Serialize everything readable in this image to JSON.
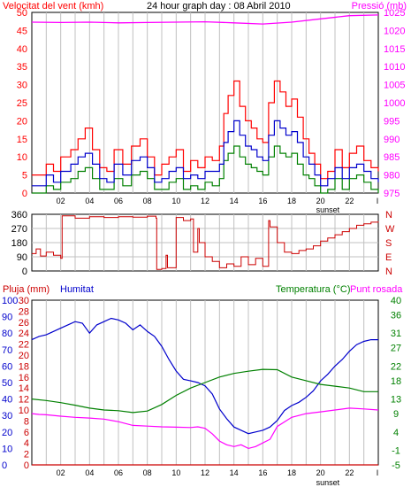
{
  "header": {
    "wind_label": "Velocitat del vent (kmh)",
    "title": "24 hour graph day : 08 Abril 2010",
    "pressure_label": "Pressió (mb)"
  },
  "colors": {
    "wind_gust": "#ff0000",
    "wind_avg": "#0000cc",
    "wind_low": "#008000",
    "pressure": "#ff00ff",
    "direction": "#cc0000",
    "rain": "#cc0000",
    "humidity": "#0000cc",
    "temperature": "#008000",
    "dew_point": "#ff00ff",
    "gridline": "#c0c0c0",
    "frame": "#000000"
  },
  "middle": {
    "compass": [
      "N",
      "W",
      "S",
      "E",
      "N"
    ]
  },
  "bottom_header": {
    "rain_label": "Pluja (mm)",
    "humidity_label": "Humitat",
    "temperature_label": "Temperatura (°C)",
    "dew_label": "Punt rosada"
  },
  "x_axis": {
    "ticks": [
      "02",
      "04",
      "06",
      "08",
      "10",
      "12",
      "14",
      "16",
      "18",
      "20",
      "22"
    ],
    "end_tick": "I",
    "sunset_label": "sunset"
  },
  "chart_data": [
    {
      "type": "line",
      "title": "24 hour graph day : 08 Abril 2010",
      "x_unit": "hour",
      "xlim": [
        0,
        24
      ],
      "ylabel": "Velocitat del vent (kmh)",
      "ylim": [
        0,
        50
      ],
      "y_ticks": [
        0,
        5,
        10,
        15,
        20,
        25,
        30,
        35,
        40,
        45,
        50
      ],
      "y2label": "Pressió (mb)",
      "y2lim": [
        975,
        1025
      ],
      "y2_ticks": [
        975,
        980,
        985,
        990,
        995,
        1000,
        1005,
        1010,
        1015,
        1020,
        1025
      ],
      "sunset_hour": 20.5,
      "series": [
        {
          "name": "Velocitat del vent (kmh)",
          "axis": "left",
          "style": "step",
          "x": [
            0,
            1,
            1.5,
            2,
            2.7,
            3.2,
            3.7,
            4.2,
            4.7,
            5.2,
            5.7,
            6.3,
            6.9,
            7.5,
            8,
            8.5,
            9,
            9.5,
            10,
            10.5,
            11,
            11.5,
            12,
            12.5,
            13,
            13.3,
            13.6,
            14,
            14.4,
            14.8,
            15.2,
            15.6,
            16,
            16.4,
            16.8,
            17.2,
            17.6,
            18,
            18.4,
            18.8,
            19.2,
            19.6,
            20,
            20.5,
            21,
            21.5,
            22,
            22.5,
            23,
            23.5,
            24
          ],
          "values": [
            5,
            8,
            6,
            10,
            12,
            15,
            18,
            12,
            7,
            6,
            12,
            8,
            13,
            15,
            10,
            5,
            8,
            10,
            12,
            6,
            9,
            7,
            10,
            9,
            13,
            22,
            27,
            31,
            24,
            20,
            18,
            15,
            14,
            25,
            31,
            28,
            24,
            26,
            21,
            15,
            11,
            8,
            4,
            6,
            12,
            7,
            11,
            13,
            9,
            7,
            6
          ]
        },
        {
          "name": "wind avg",
          "axis": "left",
          "style": "step",
          "x": [
            0,
            1,
            1.5,
            2,
            2.7,
            3.2,
            3.7,
            4.2,
            4.7,
            5.2,
            5.7,
            6.3,
            6.9,
            7.5,
            8,
            8.5,
            9,
            9.5,
            10,
            10.5,
            11,
            11.5,
            12,
            12.5,
            13,
            13.3,
            13.6,
            14,
            14.4,
            14.8,
            15.2,
            15.6,
            16,
            16.4,
            16.8,
            17.2,
            17.6,
            18,
            18.4,
            18.8,
            19.2,
            19.6,
            20,
            20.5,
            21,
            21.5,
            22,
            22.5,
            23,
            23.5,
            24
          ],
          "values": [
            2,
            5,
            3,
            6,
            8,
            10,
            11,
            8,
            4,
            3,
            8,
            5,
            9,
            10,
            7,
            3,
            4,
            6,
            7,
            4,
            5,
            4,
            6,
            6,
            8,
            14,
            17,
            20,
            16,
            13,
            12,
            10,
            9,
            16,
            20,
            18,
            16,
            17,
            14,
            10,
            8,
            5,
            2,
            4,
            7,
            4,
            7,
            8,
            6,
            4,
            3
          ]
        },
        {
          "name": "wind low",
          "axis": "left",
          "style": "step",
          "x": [
            0,
            1,
            1.5,
            2,
            2.7,
            3.2,
            3.7,
            4.2,
            4.7,
            5.2,
            5.7,
            6.3,
            6.9,
            7.5,
            8,
            8.5,
            9,
            9.5,
            10,
            10.5,
            11,
            11.5,
            12,
            12.5,
            13,
            13.3,
            13.6,
            14,
            14.4,
            14.8,
            15.2,
            15.6,
            16,
            16.4,
            16.8,
            17.2,
            17.6,
            18,
            18.4,
            18.8,
            19.2,
            19.6,
            20,
            20.5,
            21,
            21.5,
            22,
            22.5,
            23,
            23.5,
            24
          ],
          "values": [
            0,
            2,
            1,
            3,
            4,
            6,
            7,
            4,
            1,
            1,
            4,
            2,
            5,
            6,
            4,
            1,
            1,
            3,
            4,
            1,
            2,
            1,
            3,
            2,
            4,
            9,
            11,
            13,
            10,
            8,
            7,
            6,
            5,
            10,
            13,
            11,
            10,
            11,
            8,
            5,
            4,
            2,
            0,
            1,
            4,
            1,
            4,
            5,
            3,
            1,
            0
          ]
        },
        {
          "name": "Pressió (mb)",
          "axis": "right",
          "x": [
            0,
            2,
            4,
            6,
            8,
            10,
            12,
            14,
            16,
            18,
            20,
            22,
            24
          ],
          "values": [
            1022.3,
            1022.2,
            1022.3,
            1022.1,
            1022.2,
            1022.3,
            1022.4,
            1022.1,
            1021.8,
            1022.3,
            1023.2,
            1024.1,
            1024.3
          ]
        }
      ]
    },
    {
      "type": "line",
      "x_unit": "hour",
      "xlim": [
        0,
        24
      ],
      "ylim": [
        0,
        360
      ],
      "y_ticks": [
        0,
        90,
        180,
        270,
        360
      ],
      "series": [
        {
          "name": "wind direction",
          "style": "step",
          "x": [
            0,
            0.3,
            0.6,
            1,
            1.5,
            2,
            2.1,
            3,
            4,
            5,
            6,
            7,
            8,
            8.6,
            8.65,
            9,
            9.3,
            9.4,
            10,
            10.5,
            11,
            11.2,
            11.5,
            11.6,
            12,
            12.5,
            13,
            13.5,
            14,
            14.5,
            15,
            15.5,
            16,
            16.4,
            16.5,
            17,
            17.5,
            18,
            18.5,
            19,
            19.5,
            20,
            20.5,
            21,
            21.5,
            22,
            22.5,
            23,
            23.5,
            24
          ],
          "values": [
            110,
            140,
            95,
            120,
            100,
            80,
            350,
            335,
            345,
            340,
            345,
            342,
            348,
            335,
            10,
            15,
            100,
            20,
            340,
            320,
            330,
            120,
            270,
            180,
            90,
            60,
            20,
            45,
            30,
            90,
            40,
            80,
            30,
            320,
            280,
            180,
            120,
            110,
            130,
            140,
            160,
            190,
            210,
            230,
            250,
            270,
            290,
            300,
            310,
            315
          ]
        }
      ]
    },
    {
      "type": "line",
      "x_unit": "hour",
      "xlim": [
        0,
        24
      ],
      "ylabel": "Pluja (mm)",
      "ylim": [
        0,
        30
      ],
      "y_ticks": [
        0,
        2,
        4,
        6,
        8,
        10,
        12,
        14,
        16,
        18,
        20,
        22,
        24,
        26,
        28,
        30
      ],
      "humidity_ticks": [
        0,
        10,
        20,
        30,
        40,
        50,
        60,
        70,
        80,
        90,
        100
      ],
      "y2label": "Temperatura (°C)",
      "y2lim": [
        -5,
        40
      ],
      "y2_ticks": [
        -5,
        -1,
        4,
        9,
        13,
        18,
        22,
        27,
        31,
        36,
        40
      ],
      "sunset_hour": 20.5,
      "series": [
        {
          "name": "Pluja (mm)",
          "axis": "rain",
          "x": [
            0,
            24
          ],
          "values": [
            0,
            0
          ]
        },
        {
          "name": "Humitat",
          "axis": "humidity",
          "x": [
            0,
            0.5,
            1,
            1.5,
            2,
            2.5,
            3,
            3.5,
            4,
            4.5,
            5,
            5.5,
            6,
            6.5,
            7,
            7.5,
            8,
            8.5,
            9,
            9.5,
            10,
            10.5,
            11,
            11.5,
            12,
            12.5,
            13,
            13.5,
            14,
            14.5,
            15,
            15.5,
            16,
            16.5,
            17,
            17.5,
            18,
            18.5,
            19,
            19.5,
            20,
            20.5,
            21,
            21.5,
            22,
            22.5,
            23,
            23.5,
            24
          ],
          "values": [
            76,
            78,
            79,
            81,
            83,
            85,
            87,
            86,
            80,
            85,
            87,
            89,
            88,
            86,
            82,
            85,
            81,
            78,
            72,
            64,
            57,
            52,
            51,
            50,
            48,
            43,
            34,
            28,
            23,
            21,
            19,
            20,
            21,
            23,
            27,
            33,
            36,
            38,
            41,
            45,
            51,
            55,
            60,
            64,
            69,
            73,
            75,
            76,
            76
          ]
        },
        {
          "name": "Temperatura (°C)",
          "axis": "temperature",
          "x": [
            0,
            1,
            2,
            3,
            4,
            5,
            6,
            7,
            8,
            9,
            10,
            11,
            12,
            13,
            14,
            15,
            16,
            17,
            18,
            19,
            20,
            21,
            22,
            23,
            24
          ],
          "values": [
            13,
            12.6,
            12,
            11.3,
            10.5,
            10,
            9.8,
            9.3,
            9.7,
            11.5,
            14,
            16,
            17.5,
            19,
            20,
            20.6,
            21.1,
            21,
            19,
            18,
            17,
            16.5,
            16,
            15,
            15
          ]
        },
        {
          "name": "Punt rosada",
          "axis": "temperature",
          "x": [
            0,
            0.5,
            1,
            2,
            3,
            4,
            5,
            6,
            7,
            8,
            9,
            10,
            11,
            11.5,
            12,
            12.5,
            13,
            13.5,
            14,
            14.5,
            15,
            15.5,
            16,
            16.5,
            17,
            18,
            19,
            20,
            21,
            22,
            23,
            24
          ],
          "values": [
            9,
            8.8,
            8.7,
            8.3,
            8,
            7.8,
            7.5,
            6.8,
            5.8,
            5.6,
            5.4,
            5.3,
            5.2,
            5.4,
            5,
            3.5,
            1.5,
            0.5,
            0,
            0.5,
            -0.5,
            0,
            1,
            2,
            5.5,
            8,
            9,
            9.5,
            10,
            10.5,
            10.3,
            10
          ]
        }
      ]
    }
  ]
}
